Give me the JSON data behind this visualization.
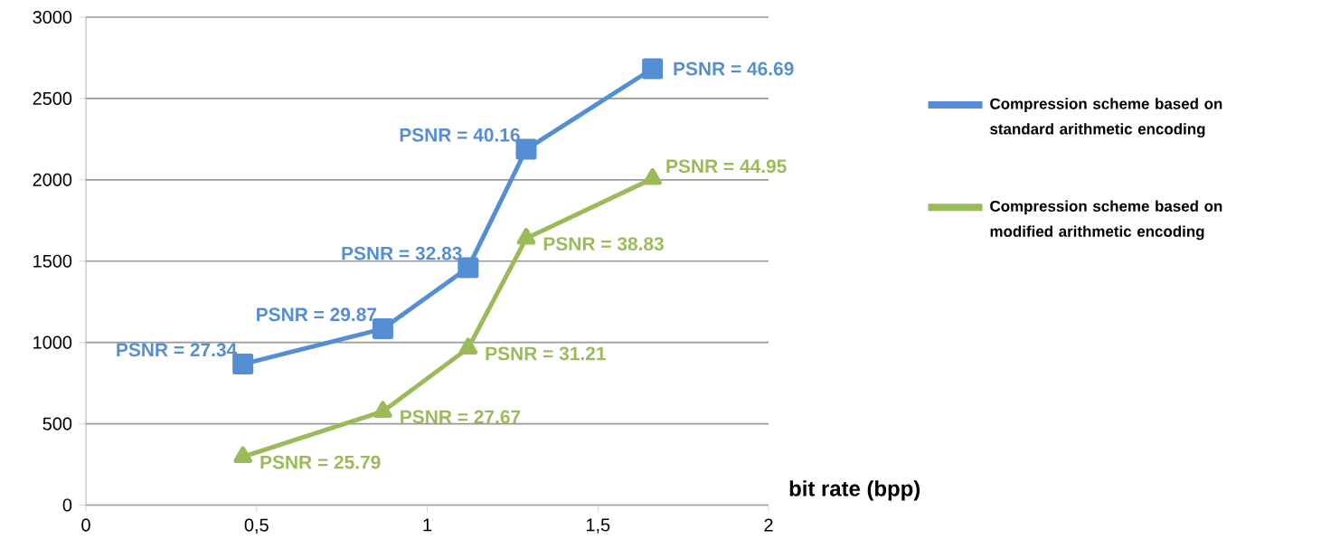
{
  "chart_data": {
    "type": "line",
    "xlabel": "bit rate (bpp)",
    "series": [
      {
        "name": "Compression scheme based on standard arithmetic encoding",
        "color": "#558ed5",
        "marker": "square",
        "x": [
          0.46,
          0.87,
          1.12,
          1.29,
          1.66
        ],
        "values": [
          867,
          1084,
          1460,
          2188,
          2683
        ]
      },
      {
        "name": "Compression scheme based on modified arithmetic encoding",
        "color": "#9bbb59",
        "marker": "triangle",
        "x": [
          0.46,
          0.87,
          1.12,
          1.29,
          1.66
        ],
        "values": [
          297,
          576,
          965,
          1640,
          2007
        ]
      }
    ],
    "annotations": [
      {
        "text": "PSNR = 27.34",
        "x": 0.46,
        "y": 867
      },
      {
        "text": "PSNR = 29.87",
        "x": 0.87,
        "y": 1084
      },
      {
        "text": "PSNR = 32.83",
        "x": 1.12,
        "y": 1460
      },
      {
        "text": "PSNR = 40.16",
        "x": 1.29,
        "y": 2188
      },
      {
        "text": "PSNR = 46.69",
        "x": 1.66,
        "y": 2683
      },
      {
        "text": "PSNR = 25.79",
        "x": 0.46,
        "y": 297
      },
      {
        "text": "PSNR = 27.67",
        "x": 0.87,
        "y": 576
      },
      {
        "text": "PSNR = 31.21",
        "x": 1.12,
        "y": 965
      },
      {
        "text": "PSNR = 38.83",
        "x": 1.29,
        "y": 1640
      },
      {
        "text": "PSNR = 44.95",
        "x": 1.66,
        "y": 2007
      }
    ],
    "xlim": [
      0,
      2
    ],
    "ylim": [
      0,
      3000
    ],
    "xticks": [
      0,
      {
        "value": 0.5,
        "label": "0,5"
      },
      1,
      {
        "value": 1.5,
        "label": "1,5"
      },
      2
    ],
    "yticks": [
      0,
      500,
      1000,
      1500,
      2000,
      2500,
      3000
    ],
    "grid": "y",
    "legend": "right",
    "line_style": "solid"
  }
}
